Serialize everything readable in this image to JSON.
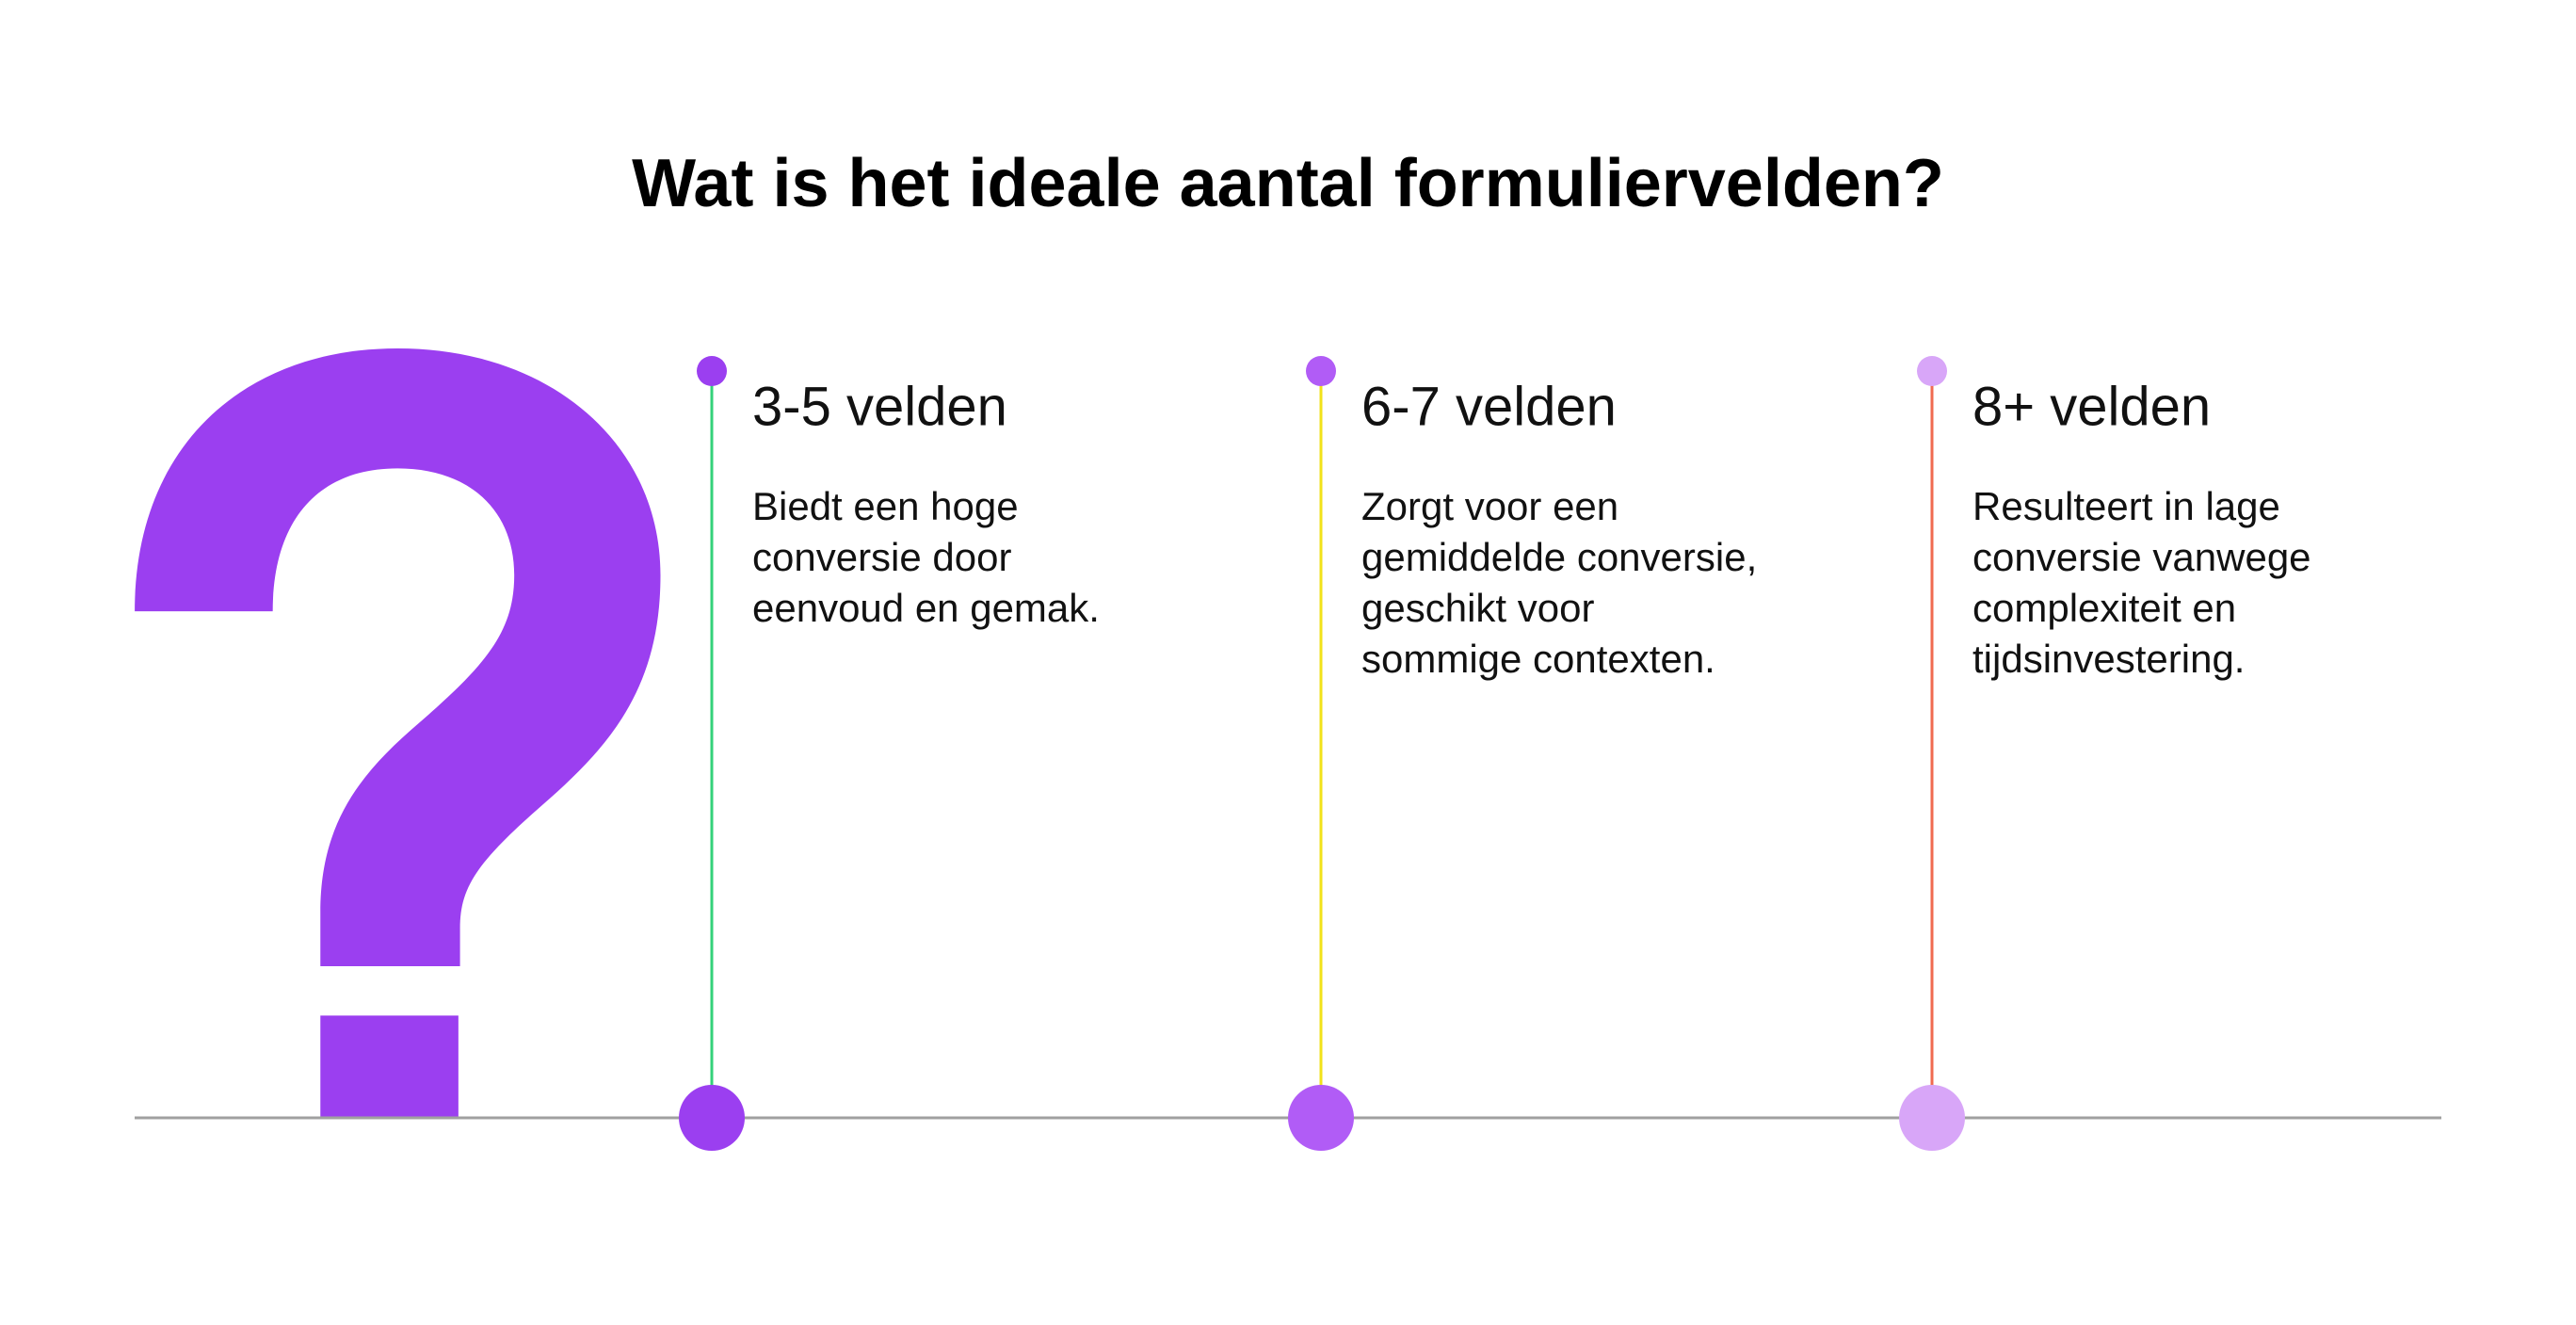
{
  "header": {
    "title": "Wat is het ideale aantal formuliervelden?"
  },
  "columns": [
    {
      "heading": "3-5 velden",
      "body": [
        "Biedt een hoge",
        "conversie door",
        "eenvoud en gemak."
      ]
    },
    {
      "heading": "6-7 velden",
      "body": [
        "Zorgt voor een",
        "gemiddelde conversie,",
        "geschikt voor",
        "sommige contexten."
      ]
    },
    {
      "heading": "8+ velden",
      "body": [
        "Resulteert in lage",
        "conversie vanwege",
        "complexiteit en",
        "tijdsinvestering."
      ]
    }
  ]
}
